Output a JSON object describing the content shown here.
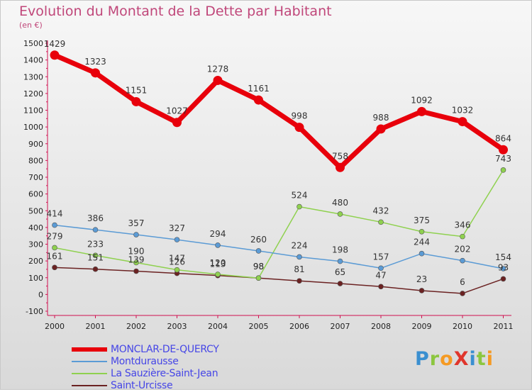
{
  "title": "Evolution du Montant de la Dette par Habitant",
  "subtitle": "(en €)",
  "logo": {
    "text": "ProXiti",
    "letters": [
      {
        "ch": "P",
        "color": "#3a8fd0"
      },
      {
        "ch": "r",
        "color": "#8cc63f"
      },
      {
        "ch": "o",
        "color": "#f59a23"
      },
      {
        "ch": "X",
        "color": "#e0362c"
      },
      {
        "ch": "i",
        "color": "#3a8fd0"
      },
      {
        "ch": "t",
        "color": "#8cc63f"
      },
      {
        "ch": "i",
        "color": "#f59a23"
      }
    ]
  },
  "chart_data": {
    "type": "line",
    "title": "Evolution du Montant de la Dette par Habitant",
    "ylabel": "(en €)",
    "ylim": [
      -100,
      1500
    ],
    "yticks": [
      -100,
      0,
      100,
      200,
      300,
      400,
      500,
      600,
      700,
      800,
      900,
      1000,
      1100,
      1200,
      1300,
      1400,
      1500
    ],
    "x": [
      "2000",
      "2001",
      "2002",
      "2003",
      "2004",
      "2005",
      "2006",
      "2007",
      "2008",
      "2009",
      "2010",
      "2011"
    ],
    "grid": false,
    "legend": "bottom-left",
    "series": [
      {
        "name": "MONCLAR-DE-QUERCY",
        "color": "#e8000b",
        "values": [
          1429,
          1323,
          1151,
          1027,
          1278,
          1161,
          998,
          758,
          988,
          1092,
          1032,
          864
        ]
      },
      {
        "name": "Montdurausse",
        "color": "#5b9bd5",
        "values": [
          414,
          386,
          357,
          327,
          294,
          260,
          224,
          198,
          157,
          244,
          202,
          154
        ]
      },
      {
        "name": "La Sauzière-Saint-Jean",
        "color": "#8fd14f",
        "values": [
          279,
          233,
          190,
          147,
          120,
          98,
          524,
          480,
          432,
          375,
          346,
          743
        ]
      },
      {
        "name": "Saint-Urcisse",
        "color": "#6b2222",
        "values": [
          161,
          151,
          139,
          126,
          113,
          98,
          81,
          65,
          47,
          23,
          6,
          93
        ]
      }
    ]
  }
}
